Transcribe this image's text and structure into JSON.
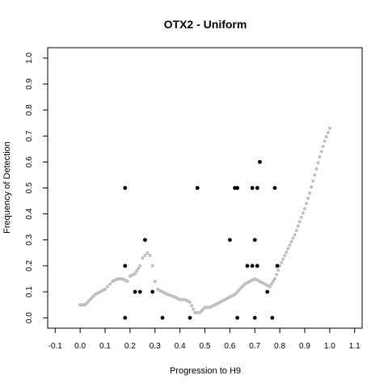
{
  "chart_data": {
    "type": "scatter",
    "title": "OTX2 - Uniform",
    "xlabel": "Progression to H9",
    "ylabel": "Frequency of Detection",
    "xlim": [
      -0.13,
      1.13
    ],
    "ylim": [
      -0.04,
      1.04
    ],
    "xticks": [
      "-0.1",
      "0.0",
      "0.1",
      "0.2",
      "0.3",
      "0.4",
      "0.5",
      "0.6",
      "0.7",
      "0.8",
      "0.9",
      "1.0",
      "1.1"
    ],
    "yticks": [
      "0.0",
      "0.1",
      "0.2",
      "0.3",
      "0.4",
      "0.5",
      "0.6",
      "0.7",
      "0.8",
      "0.9",
      "1.0"
    ],
    "grid": false,
    "series": [
      {
        "style": "gray-line",
        "color": "#c0c0c0",
        "points": [
          [
            0.0,
            0.05
          ],
          [
            0.02,
            0.05
          ],
          [
            0.04,
            0.07
          ],
          [
            0.06,
            0.09
          ],
          [
            0.08,
            0.1
          ],
          [
            0.1,
            0.11
          ],
          [
            0.11,
            0.12
          ],
          [
            0.12,
            0.13
          ],
          [
            0.13,
            0.14
          ],
          [
            0.15,
            0.15
          ],
          [
            0.17,
            0.15
          ],
          [
            0.19,
            0.14
          ],
          [
            0.2,
            0.16
          ],
          [
            0.22,
            0.17
          ],
          [
            0.24,
            0.2
          ],
          [
            0.25,
            0.23
          ],
          [
            0.26,
            0.24
          ],
          [
            0.27,
            0.25
          ],
          [
            0.28,
            0.24
          ],
          [
            0.29,
            0.2
          ],
          [
            0.3,
            0.14
          ],
          [
            0.31,
            0.11
          ],
          [
            0.33,
            0.1
          ],
          [
            0.35,
            0.09
          ],
          [
            0.38,
            0.08
          ],
          [
            0.4,
            0.07
          ],
          [
            0.42,
            0.07
          ],
          [
            0.44,
            0.06
          ],
          [
            0.46,
            0.02
          ],
          [
            0.48,
            0.02
          ],
          [
            0.5,
            0.04
          ],
          [
            0.52,
            0.04
          ],
          [
            0.54,
            0.05
          ],
          [
            0.56,
            0.06
          ],
          [
            0.58,
            0.07
          ],
          [
            0.6,
            0.08
          ],
          [
            0.62,
            0.09
          ],
          [
            0.64,
            0.11
          ],
          [
            0.66,
            0.13
          ],
          [
            0.68,
            0.14
          ],
          [
            0.7,
            0.15
          ],
          [
            0.72,
            0.14
          ],
          [
            0.74,
            0.13
          ],
          [
            0.76,
            0.12
          ],
          [
            0.78,
            0.15
          ],
          [
            0.8,
            0.2
          ],
          [
            0.82,
            0.24
          ],
          [
            0.84,
            0.28
          ],
          [
            0.86,
            0.32
          ],
          [
            0.88,
            0.37
          ],
          [
            0.9,
            0.42
          ],
          [
            0.92,
            0.48
          ],
          [
            0.94,
            0.55
          ],
          [
            0.96,
            0.62
          ],
          [
            0.98,
            0.68
          ],
          [
            1.0,
            0.73
          ]
        ]
      },
      {
        "style": "black-dots",
        "color": "#000000",
        "points": [
          [
            0.18,
            0.5
          ],
          [
            0.18,
            0.2
          ],
          [
            0.18,
            0.0
          ],
          [
            0.22,
            0.1
          ],
          [
            0.24,
            0.1
          ],
          [
            0.26,
            0.3
          ],
          [
            0.29,
            0.1
          ],
          [
            0.33,
            0.0
          ],
          [
            0.44,
            0.0
          ],
          [
            0.47,
            0.5
          ],
          [
            0.6,
            0.3
          ],
          [
            0.62,
            0.5
          ],
          [
            0.63,
            0.5
          ],
          [
            0.63,
            0.0
          ],
          [
            0.67,
            0.2
          ],
          [
            0.69,
            0.2
          ],
          [
            0.69,
            0.5
          ],
          [
            0.7,
            0.3
          ],
          [
            0.7,
            0.0
          ],
          [
            0.71,
            0.2
          ],
          [
            0.71,
            0.5
          ],
          [
            0.72,
            0.6
          ],
          [
            0.75,
            0.1
          ],
          [
            0.77,
            0.0
          ],
          [
            0.78,
            0.5
          ],
          [
            0.79,
            0.2
          ]
        ]
      }
    ]
  }
}
